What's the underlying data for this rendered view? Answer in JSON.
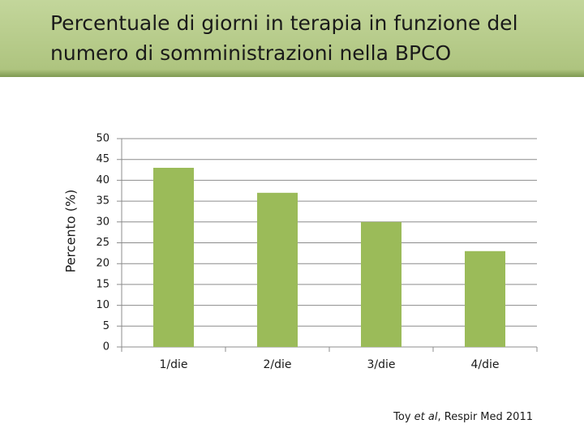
{
  "chart_data": {
    "type": "bar",
    "title": [
      "Percentuale di giorni in terapia in funzione del",
      "numero di somministrazioni nella BPCO"
    ],
    "y_label": "Percento (%)",
    "categories": [
      "1/die",
      "2/die",
      "3/die",
      "4/die"
    ],
    "values": [
      43,
      37,
      30,
      23
    ],
    "color": "#9bbb59",
    "ylim": [
      0,
      50
    ],
    "yticks": [
      0,
      5,
      10,
      15,
      20,
      25,
      30,
      35,
      40,
      45,
      50
    ],
    "grid": true,
    "source": [
      "Toy ",
      "et al",
      ", Respir Med 2011"
    ]
  }
}
